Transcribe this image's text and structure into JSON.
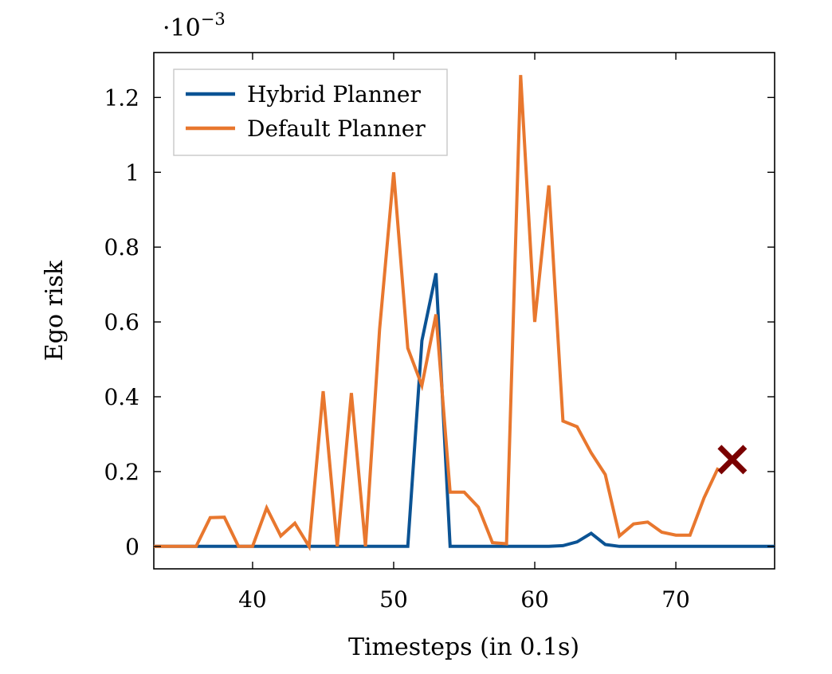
{
  "chart_data": {
    "type": "line",
    "title": "",
    "xlabel": "Timesteps (in 0.1s)",
    "ylabel": "Ego risk",
    "y_scale_label": "·10",
    "y_scale_exponent": "−3",
    "xlim": [
      33,
      77
    ],
    "ylim": [
      -0.06,
      1.32
    ],
    "xticks": [
      40,
      50,
      60,
      70
    ],
    "yticks": [
      0,
      0.2,
      0.4,
      0.6,
      0.8,
      1,
      1.2
    ],
    "ytick_labels": [
      "0",
      "0.2",
      "0.4",
      "0.6",
      "0.8",
      "1",
      "1.2"
    ],
    "grid": false,
    "legend_position": "top-left",
    "series": [
      {
        "name": "Hybrid Planner",
        "color": "#0b5394",
        "x": [
          33,
          34,
          35,
          36,
          37,
          38,
          39,
          40,
          41,
          42,
          43,
          44,
          45,
          46,
          47,
          48,
          49,
          50,
          51,
          52,
          53,
          54,
          55,
          56,
          57,
          58,
          59,
          60,
          61,
          62,
          63,
          64,
          65,
          66,
          67,
          68,
          69,
          70,
          71,
          72,
          73,
          74,
          75,
          76,
          77
        ],
        "y": [
          0,
          0,
          0,
          0,
          0,
          0,
          0,
          0,
          0,
          0,
          0,
          0,
          0,
          0,
          0,
          0,
          0,
          0,
          0,
          0.55,
          0.73,
          0,
          0,
          0,
          0,
          0,
          0,
          0,
          0,
          0.002,
          0.012,
          0.035,
          0.005,
          0,
          0,
          0,
          0,
          0,
          0,
          0,
          0,
          0,
          0,
          0,
          0
        ]
      },
      {
        "name": "Default Planner",
        "color": "#e8772e",
        "x": [
          33,
          34,
          35,
          36,
          37,
          38,
          39,
          40,
          41,
          42,
          43,
          44,
          45,
          46,
          47,
          48,
          49,
          50,
          51,
          52,
          53,
          54,
          55,
          56,
          57,
          58,
          59,
          60,
          61,
          62,
          63,
          64,
          65,
          66,
          67,
          68,
          69,
          70,
          71,
          72,
          73
        ],
        "y": [
          0,
          0,
          0,
          0,
          0.077,
          0.078,
          0,
          0,
          0.103,
          0.028,
          0.062,
          0,
          0.415,
          0,
          0.41,
          0,
          0.58,
          1.0,
          0.53,
          0.43,
          0.62,
          0.145,
          0.145,
          0.105,
          0.01,
          0.007,
          1.26,
          0.6,
          0.965,
          0.335,
          0.32,
          0.25,
          0.192,
          0.028,
          0.06,
          0.065,
          0.038,
          0.03,
          0.03,
          0.13,
          0.21
        ]
      }
    ],
    "markers": [
      {
        "type": "cross",
        "x": 74.0,
        "y": 0.232,
        "color": "#7a0000"
      }
    ]
  }
}
